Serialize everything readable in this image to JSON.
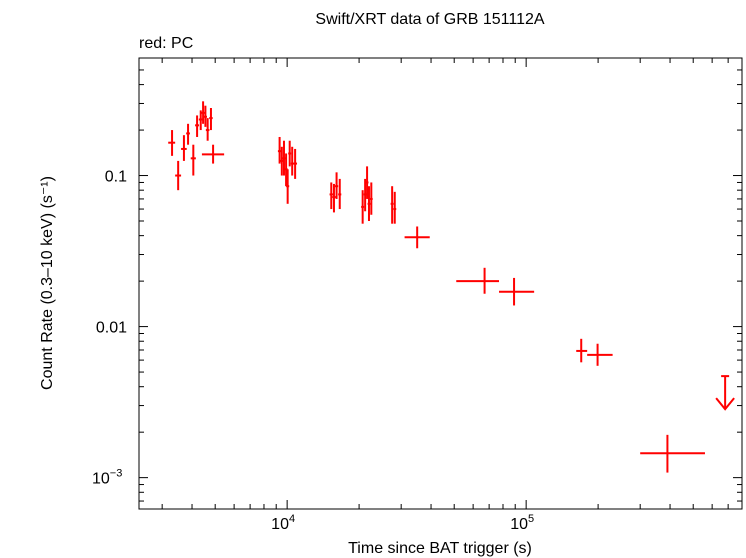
{
  "chart_data": {
    "type": "scatter",
    "title": "Swift/XRT data of GRB 151112A",
    "subtitle": "red: PC",
    "xlabel": "Time since BAT trigger (s)",
    "ylabel": "Count Rate (0.3–10 keV) (s⁻¹)",
    "xscale": "log",
    "yscale": "log",
    "xlim": [
      2400,
      800000
    ],
    "ylim": [
      0.00062,
      0.6
    ],
    "x_ticks": [
      {
        "value": 10000,
        "base": "10",
        "exp": "4"
      },
      {
        "value": 100000,
        "base": "10",
        "exp": "5"
      }
    ],
    "y_ticks": [
      {
        "value": 0.1,
        "label": "0.1"
      },
      {
        "value": 0.01,
        "label": "0.01"
      },
      {
        "value": 0.001,
        "label": "10",
        "exp": "−3"
      }
    ],
    "grid": false,
    "color": "#ff0000",
    "series": [
      {
        "points": [
          {
            "x": 3300,
            "xlo": 3180,
            "xhi": 3400,
            "y": 0.165,
            "ylo": 0.135,
            "yhi": 0.2
          },
          {
            "x": 3500,
            "xlo": 3400,
            "xhi": 3600,
            "y": 0.1,
            "ylo": 0.08,
            "yhi": 0.125
          },
          {
            "x": 3700,
            "xlo": 3600,
            "xhi": 3800,
            "y": 0.15,
            "ylo": 0.125,
            "yhi": 0.185
          },
          {
            "x": 3850,
            "xlo": 3780,
            "xhi": 3920,
            "y": 0.19,
            "ylo": 0.16,
            "yhi": 0.22
          },
          {
            "x": 4050,
            "xlo": 3950,
            "xhi": 4150,
            "y": 0.13,
            "ylo": 0.1,
            "yhi": 0.16
          },
          {
            "x": 4200,
            "xlo": 4120,
            "xhi": 4280,
            "y": 0.215,
            "ylo": 0.18,
            "yhi": 0.25
          },
          {
            "x": 4350,
            "xlo": 4270,
            "xhi": 4430,
            "y": 0.235,
            "ylo": 0.2,
            "yhi": 0.27
          },
          {
            "x": 4450,
            "xlo": 4380,
            "xhi": 4520,
            "y": 0.26,
            "ylo": 0.22,
            "yhi": 0.31
          },
          {
            "x": 4550,
            "xlo": 4480,
            "xhi": 4620,
            "y": 0.245,
            "ylo": 0.21,
            "yhi": 0.29
          },
          {
            "x": 4650,
            "xlo": 4570,
            "xhi": 4730,
            "y": 0.2,
            "ylo": 0.17,
            "yhi": 0.24
          },
          {
            "x": 4800,
            "xlo": 4720,
            "xhi": 4880,
            "y": 0.24,
            "ylo": 0.2,
            "yhi": 0.28
          },
          {
            "x": 4900,
            "xlo": 4400,
            "xhi": 5450,
            "y": 0.138,
            "ylo": 0.12,
            "yhi": 0.16
          },
          {
            "x": 9300,
            "xlo": 9150,
            "xhi": 9450,
            "y": 0.145,
            "ylo": 0.12,
            "yhi": 0.18
          },
          {
            "x": 9500,
            "xlo": 9350,
            "xhi": 9650,
            "y": 0.125,
            "ylo": 0.1,
            "yhi": 0.155
          },
          {
            "x": 9700,
            "xlo": 9550,
            "xhi": 9850,
            "y": 0.13,
            "ylo": 0.1,
            "yhi": 0.17
          },
          {
            "x": 9900,
            "xlo": 9750,
            "xhi": 10050,
            "y": 0.11,
            "ylo": 0.085,
            "yhi": 0.14
          },
          {
            "x": 10050,
            "xlo": 9900,
            "xhi": 10200,
            "y": 0.085,
            "ylo": 0.065,
            "yhi": 0.11
          },
          {
            "x": 10250,
            "xlo": 10100,
            "xhi": 10400,
            "y": 0.14,
            "ylo": 0.115,
            "yhi": 0.17
          },
          {
            "x": 10500,
            "xlo": 10350,
            "xhi": 10650,
            "y": 0.12,
            "ylo": 0.1,
            "yhi": 0.155
          },
          {
            "x": 10800,
            "xlo": 10600,
            "xhi": 11000,
            "y": 0.12,
            "ylo": 0.095,
            "yhi": 0.15
          },
          {
            "x": 15300,
            "xlo": 15050,
            "xhi": 15550,
            "y": 0.075,
            "ylo": 0.06,
            "yhi": 0.09
          },
          {
            "x": 15700,
            "xlo": 15450,
            "xhi": 15950,
            "y": 0.072,
            "ylo": 0.057,
            "yhi": 0.088
          },
          {
            "x": 16100,
            "xlo": 15850,
            "xhi": 16350,
            "y": 0.085,
            "ylo": 0.07,
            "yhi": 0.105
          },
          {
            "x": 16600,
            "xlo": 16350,
            "xhi": 16850,
            "y": 0.075,
            "ylo": 0.06,
            "yhi": 0.095
          },
          {
            "x": 20700,
            "xlo": 20400,
            "xhi": 21000,
            "y": 0.062,
            "ylo": 0.048,
            "yhi": 0.08
          },
          {
            "x": 21200,
            "xlo": 20900,
            "xhi": 21500,
            "y": 0.075,
            "ylo": 0.058,
            "yhi": 0.095
          },
          {
            "x": 21600,
            "xlo": 21300,
            "xhi": 21900,
            "y": 0.09,
            "ylo": 0.07,
            "yhi": 0.115
          },
          {
            "x": 22000,
            "xlo": 21700,
            "xhi": 22300,
            "y": 0.065,
            "ylo": 0.05,
            "yhi": 0.085
          },
          {
            "x": 22500,
            "xlo": 22200,
            "xhi": 22800,
            "y": 0.07,
            "ylo": 0.055,
            "yhi": 0.09
          },
          {
            "x": 27500,
            "xlo": 27100,
            "xhi": 27900,
            "y": 0.065,
            "ylo": 0.048,
            "yhi": 0.085
          },
          {
            "x": 28200,
            "xlo": 27800,
            "xhi": 28600,
            "y": 0.06,
            "ylo": 0.048,
            "yhi": 0.078
          },
          {
            "x": 35000,
            "xlo": 31000,
            "xhi": 39500,
            "y": 0.039,
            "ylo": 0.033,
            "yhi": 0.046
          },
          {
            "x": 67000,
            "xlo": 51000,
            "xhi": 77000,
            "y": 0.02,
            "ylo": 0.0165,
            "yhi": 0.0245
          },
          {
            "x": 89000,
            "xlo": 77000,
            "xhi": 108000,
            "y": 0.017,
            "ylo": 0.0138,
            "yhi": 0.021
          },
          {
            "x": 170000,
            "xlo": 162000,
            "xhi": 180000,
            "y": 0.0069,
            "ylo": 0.0058,
            "yhi": 0.0083
          },
          {
            "x": 199000,
            "xlo": 180000,
            "xhi": 230000,
            "y": 0.0065,
            "ylo": 0.0055,
            "yhi": 0.0077
          },
          {
            "x": 390000,
            "xlo": 300000,
            "xhi": 560000,
            "y": 0.00145,
            "ylo": 0.00108,
            "yhi": 0.00192
          }
        ],
        "upper_limits": [
          {
            "x": 680000,
            "y": 0.0047
          }
        ]
      }
    ]
  }
}
